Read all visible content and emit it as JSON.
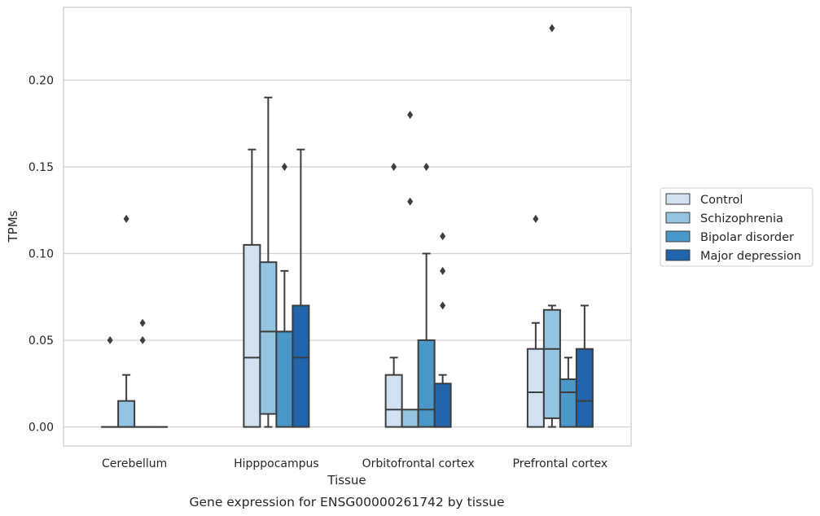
{
  "caption": "Gene expression for ENSG00000261742 by tissue",
  "chart_data": {
    "type": "box",
    "xlabel": "Tissue",
    "ylabel": "TPMs",
    "ylim": [
      -0.011,
      0.242
    ],
    "yticks": [
      "0.00",
      "0.05",
      "0.10",
      "0.15",
      "0.20"
    ],
    "grid": "horizontal",
    "legend_position": "right",
    "categories": [
      "Cerebellum",
      "Hipppocampus",
      "Orbitofrontal cortex",
      "Prefrontal cortex"
    ],
    "series": [
      {
        "name": "Control",
        "color": "#d0e1f2",
        "boxes": [
          {
            "min": 0,
            "q1": 0,
            "median": 0,
            "q3": 0,
            "max": 0,
            "outliers": [
              0.05
            ]
          },
          {
            "min": 0,
            "q1": 0,
            "median": 0.04,
            "q3": 0.105,
            "max": 0.16,
            "outliers": []
          },
          {
            "min": 0,
            "q1": 0,
            "median": 0.01,
            "q3": 0.03,
            "max": 0.04,
            "outliers": [
              0.15
            ]
          },
          {
            "min": 0,
            "q1": 0,
            "median": 0.02,
            "q3": 0.045,
            "max": 0.06,
            "outliers": [
              0.12
            ]
          }
        ]
      },
      {
        "name": "Schizophrenia",
        "color": "#94c4df",
        "boxes": [
          {
            "min": 0,
            "q1": 0,
            "median": 0,
            "q3": 0.015,
            "max": 0.03,
            "outliers": [
              0.12
            ]
          },
          {
            "min": 0,
            "q1": 0.0075,
            "median": 0.055,
            "q3": 0.095,
            "max": 0.19,
            "outliers": []
          },
          {
            "min": 0,
            "q1": 0,
            "median": 0,
            "q3": 0.01,
            "max": 0.01,
            "outliers": [
              0.13,
              0.18
            ]
          },
          {
            "min": 0,
            "q1": 0.005,
            "median": 0.045,
            "q3": 0.0675,
            "max": 0.07,
            "outliers": [
              0.23
            ]
          }
        ]
      },
      {
        "name": "Bipolar disorder",
        "color": "#4a98c9",
        "boxes": [
          {
            "min": 0,
            "q1": 0,
            "median": 0,
            "q3": 0,
            "max": 0,
            "outliers": [
              0.05,
              0.06
            ]
          },
          {
            "min": 0,
            "q1": 0,
            "median": 0.055,
            "q3": 0.055,
            "max": 0.09,
            "outliers": [
              0.15
            ]
          },
          {
            "min": 0,
            "q1": 0,
            "median": 0.01,
            "q3": 0.05,
            "max": 0.1,
            "outliers": [
              0.15
            ]
          },
          {
            "min": 0,
            "q1": 0,
            "median": 0.02,
            "q3": 0.0275,
            "max": 0.04,
            "outliers": []
          }
        ]
      },
      {
        "name": "Major depression",
        "color": "#2164ab",
        "boxes": [
          {
            "min": 0,
            "q1": 0,
            "median": 0,
            "q3": 0,
            "max": 0,
            "outliers": []
          },
          {
            "min": 0,
            "q1": 0,
            "median": 0.04,
            "q3": 0.07,
            "max": 0.16,
            "outliers": []
          },
          {
            "min": 0,
            "q1": 0,
            "median": 0,
            "q3": 0.025,
            "max": 0.03,
            "outliers": [
              0.07,
              0.09,
              0.11
            ]
          },
          {
            "min": 0,
            "q1": 0,
            "median": 0.015,
            "q3": 0.045,
            "max": 0.07,
            "outliers": []
          }
        ]
      }
    ]
  }
}
